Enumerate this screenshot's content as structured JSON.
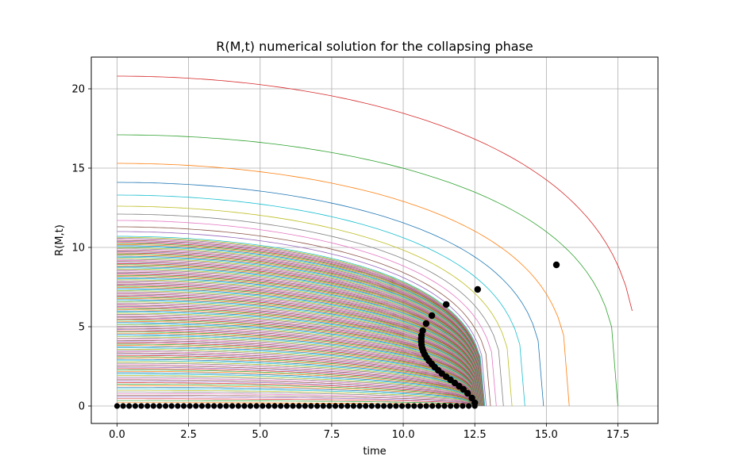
{
  "chart_data": {
    "type": "line",
    "title": "R(M,t) numerical solution for the collapsing phase",
    "xlabel": "time",
    "ylabel": "R(M,t)",
    "xlim": [
      -0.9,
      18.9
    ],
    "ylim": [
      -1.1,
      22.0
    ],
    "xticks": [
      "0.0",
      "2.5",
      "5.0",
      "7.5",
      "10.0",
      "12.5",
      "15.0",
      "17.5"
    ],
    "xtick_values": [
      0,
      2.5,
      5,
      7.5,
      10,
      12.5,
      15,
      17.5
    ],
    "yticks": [
      "0",
      "5",
      "10",
      "15",
      "20"
    ],
    "ytick_values": [
      0,
      5,
      10,
      15,
      20
    ],
    "grid": true,
    "legend": "none",
    "highlighted_series": [
      {
        "name": "",
        "r0": 20.8,
        "t_end": 18.0,
        "r_end": 6.0,
        "color": "#d62728"
      },
      {
        "name": "",
        "r0": 17.1,
        "t_end": 17.5,
        "r_end": 0.0,
        "color": "#2ca02c"
      },
      {
        "name": "",
        "r0": 15.3,
        "t_end": 15.8,
        "r_end": 0.0,
        "color": "#ff7f0e"
      },
      {
        "name": "",
        "r0": 14.1,
        "t_end": 14.9,
        "r_end": 0.0,
        "color": "#1f77b4"
      },
      {
        "name": "",
        "r0": 13.3,
        "t_end": 14.25,
        "r_end": 0.0,
        "color": "#17becf"
      },
      {
        "name": "",
        "r0": 12.6,
        "t_end": 13.8,
        "r_end": 0.0,
        "color": "#bcbd22"
      },
      {
        "name": "",
        "r0": 12.1,
        "t_end": 13.5,
        "r_end": 0.0,
        "color": "#7f7f7f"
      },
      {
        "name": "",
        "r0": 11.7,
        "t_end": 13.25,
        "r_end": 0.0,
        "color": "#e377c2"
      },
      {
        "name": "",
        "r0": 11.3,
        "t_end": 13.05,
        "r_end": 0.0,
        "color": "#8c564b"
      },
      {
        "name": "",
        "r0": 11.0,
        "t_end": 12.9,
        "r_end": 0.0,
        "color": "#9467bd"
      }
    ],
    "dense_family": {
      "count": 140,
      "r0_min": 0.05,
      "r0_max": 10.7,
      "t_end_min": 12.4,
      "t_end_max": 12.85,
      "colors": [
        "#1f77b4",
        "#ff7f0e",
        "#2ca02c",
        "#d62728",
        "#9467bd",
        "#8c564b",
        "#e377c2",
        "#7f7f7f",
        "#bcbd22",
        "#17becf"
      ]
    },
    "markers": {
      "color": "#000000",
      "points": [
        [
          15.35,
          8.9
        ],
        [
          12.6,
          7.35
        ],
        [
          11.5,
          6.4
        ],
        [
          11.0,
          5.7
        ],
        [
          10.8,
          5.2
        ],
        [
          10.68,
          4.75
        ],
        [
          10.64,
          4.45
        ],
        [
          10.63,
          4.25
        ],
        [
          10.63,
          4.05
        ],
        [
          10.64,
          3.85
        ],
        [
          10.66,
          3.65
        ],
        [
          10.7,
          3.45
        ],
        [
          10.75,
          3.25
        ],
        [
          10.82,
          3.05
        ],
        [
          10.9,
          2.85
        ],
        [
          11.0,
          2.65
        ],
        [
          11.1,
          2.45
        ],
        [
          11.22,
          2.25
        ],
        [
          11.35,
          2.05
        ],
        [
          11.5,
          1.85
        ],
        [
          11.65,
          1.65
        ],
        [
          11.8,
          1.45
        ],
        [
          11.95,
          1.25
        ],
        [
          12.1,
          1.05
        ],
        [
          12.25,
          0.8
        ],
        [
          12.4,
          0.5
        ],
        [
          12.5,
          0.2
        ]
      ],
      "baseline": {
        "t_start": 0.0,
        "t_end": 12.5,
        "r": 0.0,
        "count": 60
      }
    }
  }
}
